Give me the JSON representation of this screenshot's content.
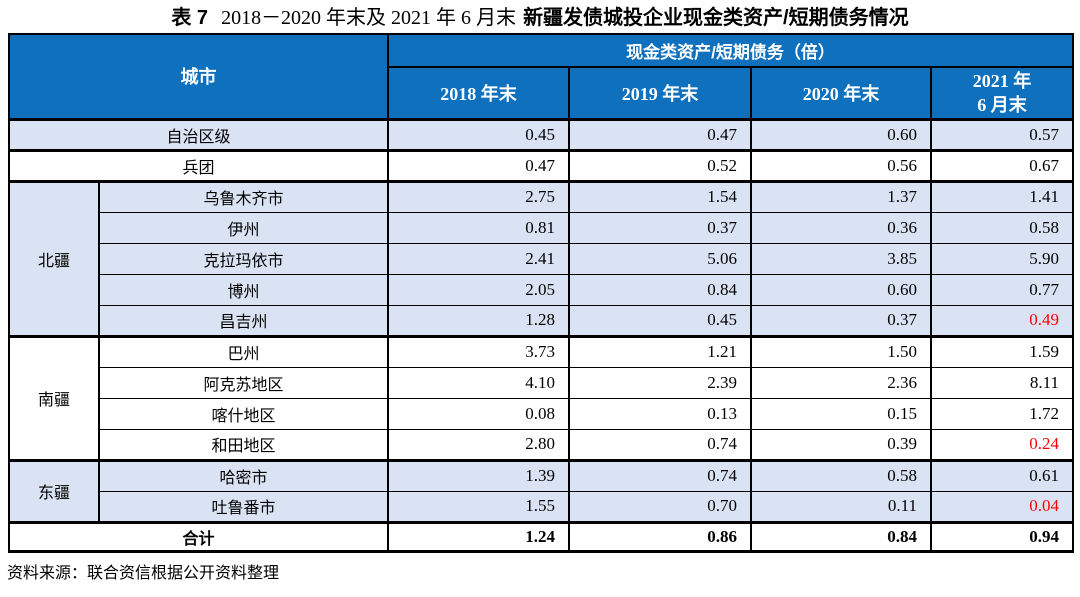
{
  "title": {
    "prefix": "表 7",
    "period": "2018－2020 年末及 2021 年 6 月末",
    "subject": "新疆发债城投企业现金类资产/短期债务情况"
  },
  "chart_data": {
    "type": "table",
    "title": "表 7 2018－2020 年末及 2021 年 6 月末新疆发债城投企业现金类资产/短期债务情况",
    "header": {
      "city": "城市",
      "group": "现金类资产/短期债务（倍）",
      "periods": [
        "2018 年末",
        "2019 年末",
        "2020 年末",
        "2021 年\n6 月末"
      ]
    },
    "sections": [
      {
        "merged_row": {
          "label": "自治区级",
          "values": [
            "0.45",
            "0.47",
            "0.60",
            "0.57"
          ]
        }
      },
      {
        "merged_row": {
          "label": "兵团",
          "values": [
            "0.47",
            "0.52",
            "0.56",
            "0.67"
          ]
        }
      },
      {
        "group_label": "北疆",
        "rows": [
          {
            "city": "乌鲁木齐市",
            "values": [
              "2.75",
              "1.54",
              "1.37",
              "1.41"
            ]
          },
          {
            "city": "伊州",
            "values": [
              "0.81",
              "0.37",
              "0.36",
              "0.58"
            ]
          },
          {
            "city": "克拉玛依市",
            "values": [
              "2.41",
              "5.06",
              "3.85",
              "5.90"
            ]
          },
          {
            "city": "博州",
            "values": [
              "2.05",
              "0.84",
              "0.60",
              "0.77"
            ]
          },
          {
            "city": "昌吉州",
            "values": [
              "1.28",
              "0.45",
              "0.37",
              "0.49"
            ],
            "red_value_indices": [
              3
            ]
          }
        ]
      },
      {
        "group_label": "南疆",
        "rows": [
          {
            "city": "巴州",
            "values": [
              "3.73",
              "1.21",
              "1.50",
              "1.59"
            ]
          },
          {
            "city": "阿克苏地区",
            "values": [
              "4.10",
              "2.39",
              "2.36",
              "8.11"
            ]
          },
          {
            "city": "喀什地区",
            "values": [
              "0.08",
              "0.13",
              "0.15",
              "1.72"
            ]
          },
          {
            "city": "和田地区",
            "values": [
              "2.80",
              "0.74",
              "0.39",
              "0.24"
            ],
            "red_value_indices": [
              3
            ]
          }
        ]
      },
      {
        "group_label": "东疆",
        "rows": [
          {
            "city": "哈密市",
            "values": [
              "1.39",
              "0.74",
              "0.58",
              "0.61"
            ]
          },
          {
            "city": "吐鲁番市",
            "values": [
              "1.55",
              "0.70",
              "0.11",
              "0.04"
            ],
            "red_value_indices": [
              3
            ]
          }
        ]
      },
      {
        "merged_row": {
          "label": "合计",
          "values": [
            "1.24",
            "0.86",
            "0.84",
            "0.94"
          ],
          "bold": true
        }
      }
    ]
  },
  "source_note": "资料来源：联合资信根据公开资料整理",
  "colors": {
    "header_bg": "#0f70bd",
    "shade": "#dae3f3",
    "red": "#ff0000",
    "border": "#000000",
    "header_text": "#ffffff",
    "text": "#000000"
  }
}
